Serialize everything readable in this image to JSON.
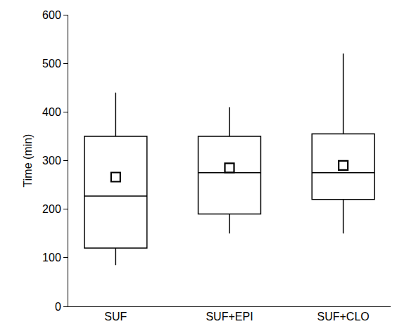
{
  "chart_data": {
    "type": "box",
    "y_label": "Time (min)",
    "categories": [
      "SUF",
      "SUF+EPI",
      "SUF+CLO"
    ],
    "min": [
      85,
      150,
      150
    ],
    "q1": [
      120,
      190,
      220
    ],
    "median": [
      227,
      275,
      275
    ],
    "q3": [
      350,
      350,
      355
    ],
    "max": [
      440,
      410,
      520
    ],
    "mean": [
      266,
      285,
      290
    ],
    "marker": "square-open",
    "color": "#000000",
    "ylim": [
      0,
      600
    ],
    "yticks": [
      0,
      100,
      200,
      300,
      400,
      500,
      600
    ],
    "grid": false
  }
}
